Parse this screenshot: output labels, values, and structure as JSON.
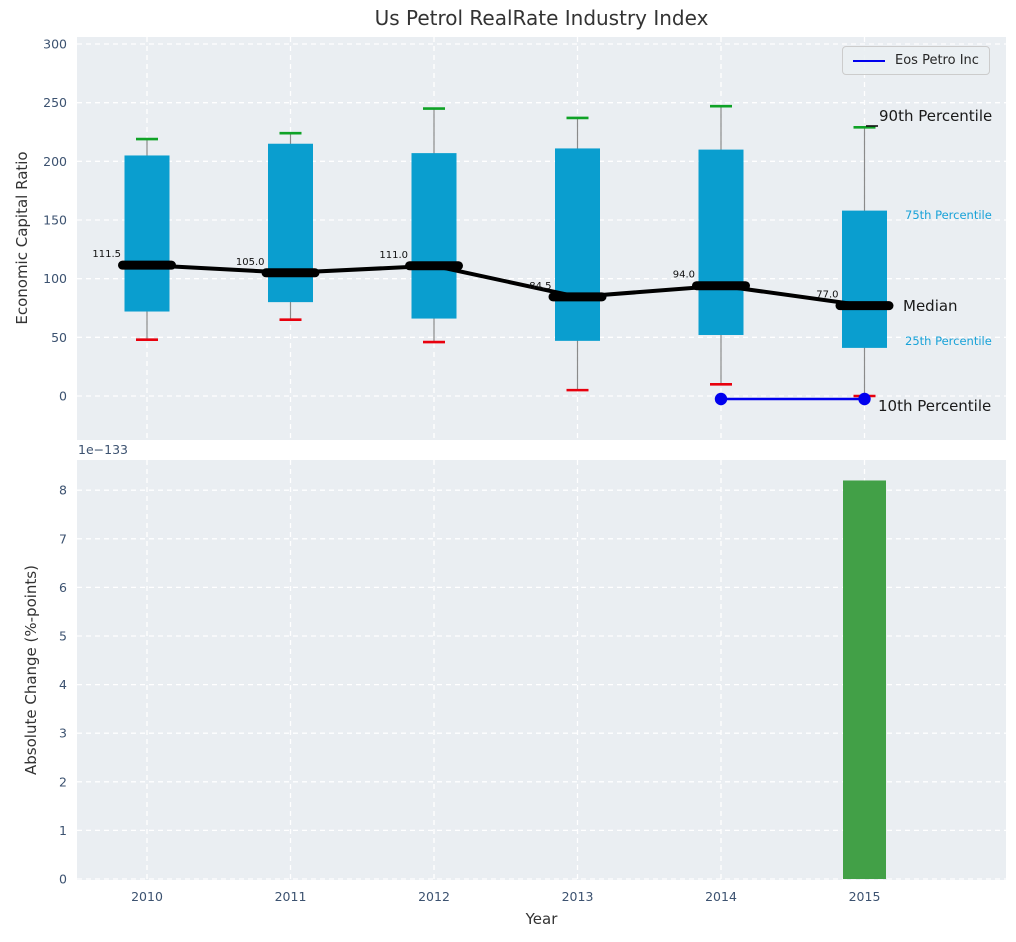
{
  "title": "Us Petrol RealRate Industry Index",
  "legend": {
    "label": "Eos Petro Inc"
  },
  "annotations": {
    "p90": "90th Percentile",
    "p75": "75th Percentile",
    "median": "Median",
    "p25": "25th Percentile",
    "p10": "10th Percentile"
  },
  "colors": {
    "box_fill": "#0a9ecf",
    "cap_90": "#0fa226",
    "cap_10": "#e8000d",
    "median": "#000000",
    "whisker": "#8a8a8a",
    "eos_line": "#0000ee",
    "bar_fill": "#42a047",
    "axes_bg": "#eaeef2",
    "grid": "#ffffff",
    "tick": "#3c5270",
    "cyan_label": "#18a2d8",
    "value_label": "#111111"
  },
  "chart_data": [
    {
      "type": "box",
      "ylabel": "Economic Capital Ratio",
      "categories": [
        "2010",
        "2011",
        "2012",
        "2013",
        "2014",
        "2015"
      ],
      "ylim": [
        -37,
        306
      ],
      "yticks": [
        0,
        50,
        100,
        150,
        200,
        250,
        300
      ],
      "grid": "white dashed, horizontal and vertical",
      "legend_position": "upper right",
      "percentiles": {
        "p10": [
          48,
          65,
          46,
          5,
          10,
          0
        ],
        "p25": [
          72,
          80,
          66,
          47,
          52,
          41
        ],
        "median": [
          111.5,
          105.0,
          111.0,
          84.5,
          94.0,
          77.0
        ],
        "p75": [
          205,
          215,
          207,
          211,
          210,
          158
        ],
        "p90": [
          219,
          224,
          245,
          237,
          247,
          229
        ]
      },
      "median_labels": [
        "111.5",
        "105.0",
        "111.0",
        "84.5",
        "94.0",
        "77.0"
      ],
      "series": [
        {
          "name": "Eos Petro Inc",
          "x": [
            "2014",
            "2015"
          ],
          "values": [
            0,
            0
          ]
        }
      ]
    },
    {
      "type": "bar",
      "xlabel": "Year",
      "ylabel": "Absolute Change (%-points)",
      "scale_label": "1e−133",
      "categories": [
        "2010",
        "2011",
        "2012",
        "2013",
        "2014",
        "2015"
      ],
      "values": [
        0,
        0,
        0,
        0,
        0,
        8.2
      ],
      "value_scale": "1e-133",
      "ylim": [
        0,
        8.6
      ],
      "yticks": [
        0,
        1,
        2,
        3,
        4,
        5,
        6,
        7,
        8
      ],
      "grid": "white dashed, horizontal and vertical"
    }
  ]
}
